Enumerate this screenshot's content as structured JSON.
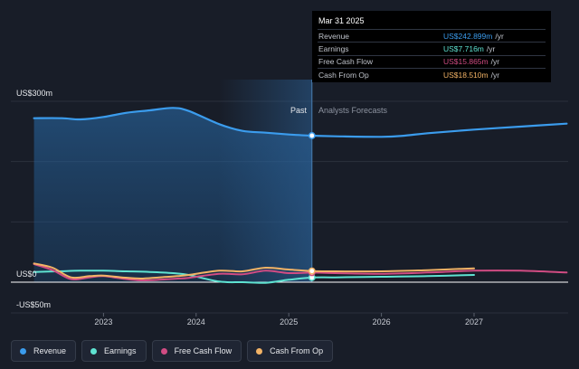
{
  "chart_data": {
    "type": "area",
    "x_ticks": [
      "2023",
      "2024",
      "2025",
      "2026",
      "2027"
    ],
    "y_labels": {
      "top": "US$300m",
      "zero": "US$0",
      "bottom": "-US$50m"
    },
    "ylim": [
      -50,
      300
    ],
    "region_labels": {
      "past": "Past",
      "forecast": "Analysts Forecasts"
    },
    "divider_x": 2025.25,
    "series": [
      {
        "name": "Revenue",
        "color": "#3b9ced",
        "points": [
          [
            2022.25,
            272
          ],
          [
            2022.55,
            272
          ],
          [
            2022.75,
            270
          ],
          [
            2023.0,
            274
          ],
          [
            2023.25,
            281
          ],
          [
            2023.5,
            285
          ],
          [
            2023.75,
            289
          ],
          [
            2023.92,
            284
          ],
          [
            2024.25,
            262
          ],
          [
            2024.5,
            251
          ],
          [
            2024.75,
            248
          ],
          [
            2025.0,
            245
          ],
          [
            2025.25,
            243
          ],
          [
            2025.5,
            242
          ],
          [
            2026.0,
            241
          ],
          [
            2026.25,
            243
          ],
          [
            2026.5,
            247
          ],
          [
            2027.0,
            253
          ],
          [
            2027.5,
            258
          ],
          [
            2028.0,
            263
          ]
        ]
      },
      {
        "name": "Earnings",
        "color": "#5fe3d2",
        "points": [
          [
            2022.25,
            17
          ],
          [
            2022.5,
            18
          ],
          [
            2022.75,
            19
          ],
          [
            2023.0,
            19
          ],
          [
            2023.25,
            18
          ],
          [
            2023.5,
            17
          ],
          [
            2023.75,
            15
          ],
          [
            2023.92,
            12
          ],
          [
            2024.25,
            1
          ],
          [
            2024.5,
            0
          ],
          [
            2024.75,
            -1
          ],
          [
            2025.0,
            4
          ],
          [
            2025.25,
            7.7
          ],
          [
            2025.5,
            8
          ],
          [
            2026.0,
            9
          ],
          [
            2026.5,
            10
          ],
          [
            2027.0,
            12
          ]
        ]
      },
      {
        "name": "Free Cash Flow",
        "color": "#d14c83",
        "points": [
          [
            2022.25,
            30
          ],
          [
            2022.45,
            20
          ],
          [
            2022.65,
            5
          ],
          [
            2022.85,
            8
          ],
          [
            2023.0,
            10
          ],
          [
            2023.2,
            6
          ],
          [
            2023.4,
            3
          ],
          [
            2023.6,
            4
          ],
          [
            2023.8,
            6
          ],
          [
            2023.92,
            7
          ],
          [
            2024.25,
            14
          ],
          [
            2024.5,
            13
          ],
          [
            2024.75,
            19
          ],
          [
            2025.0,
            15
          ],
          [
            2025.25,
            15.9
          ],
          [
            2025.5,
            15
          ],
          [
            2026.0,
            14
          ],
          [
            2026.5,
            16
          ],
          [
            2027.0,
            19
          ],
          [
            2027.5,
            19
          ],
          [
            2028.0,
            16
          ]
        ]
      },
      {
        "name": "Cash From Op",
        "color": "#f3b366",
        "points": [
          [
            2022.25,
            31
          ],
          [
            2022.45,
            24
          ],
          [
            2022.65,
            8
          ],
          [
            2022.85,
            10
          ],
          [
            2023.0,
            11
          ],
          [
            2023.2,
            8
          ],
          [
            2023.4,
            6
          ],
          [
            2023.6,
            8
          ],
          [
            2023.8,
            10
          ],
          [
            2023.92,
            12
          ],
          [
            2024.25,
            19
          ],
          [
            2024.5,
            18
          ],
          [
            2024.75,
            24
          ],
          [
            2025.0,
            21
          ],
          [
            2025.25,
            18.5
          ],
          [
            2025.5,
            18
          ],
          [
            2026.0,
            18
          ],
          [
            2026.5,
            20
          ],
          [
            2027.0,
            23
          ]
        ]
      }
    ]
  },
  "tooltip": {
    "date": "Mar 31 2025",
    "rows": [
      {
        "label": "Revenue",
        "value": "US$242.899m",
        "unit": "/yr",
        "color": "#3b9ced"
      },
      {
        "label": "Earnings",
        "value": "US$7.716m",
        "unit": "/yr",
        "color": "#5fe3d2"
      },
      {
        "label": "Free Cash Flow",
        "value": "US$15.865m",
        "unit": "/yr",
        "color": "#d14c83"
      },
      {
        "label": "Cash From Op",
        "value": "US$18.510m",
        "unit": "/yr",
        "color": "#f3b366"
      }
    ]
  },
  "legend": [
    {
      "label": "Revenue",
      "color": "#3b9ced"
    },
    {
      "label": "Earnings",
      "color": "#5fe3d2"
    },
    {
      "label": "Free Cash Flow",
      "color": "#d14c83"
    },
    {
      "label": "Cash From Op",
      "color": "#f3b366"
    }
  ]
}
